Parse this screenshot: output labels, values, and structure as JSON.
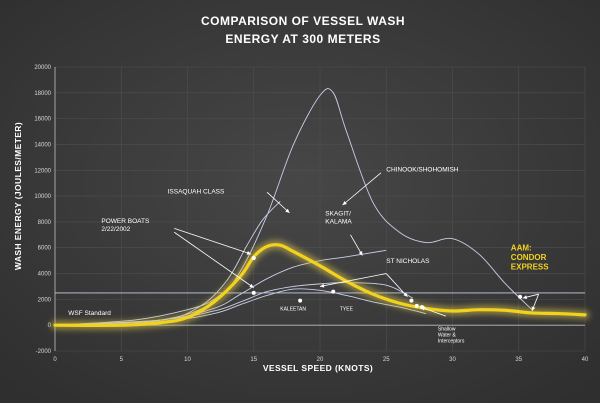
{
  "chart_data": {
    "type": "line",
    "title": [
      "COMPARISON OF VESSEL WASH",
      "ENERGY AT 300 METERS"
    ],
    "xlabel": "VESSEL SPEED (KNOTS)",
    "ylabel": "WASH ENERGY  (JOULES/METER)",
    "xlim": [
      0,
      40
    ],
    "ylim": [
      -2000,
      20000
    ],
    "x_ticks": [
      "0",
      "5",
      "10",
      "15",
      "20",
      "25",
      "30",
      "35",
      "40"
    ],
    "y_ticks": [
      "-2000",
      "0",
      "2000",
      "4000",
      "6000",
      "8000",
      "10000",
      "12000",
      "14000",
      "16000",
      "18000",
      "20000"
    ],
    "grid": true,
    "colors": {
      "background": "#3a3a3a",
      "series": "#c9cde6",
      "highlight": "#f2d21c",
      "glow": "#d9c24a",
      "text": "#ffffff"
    },
    "series": [
      {
        "id": "chinook",
        "points": [
          [
            0,
            0
          ],
          [
            8,
            400
          ],
          [
            12,
            1800
          ],
          [
            14,
            4200
          ],
          [
            16,
            8500
          ],
          [
            18,
            14000
          ],
          [
            20,
            17800
          ],
          [
            21,
            18000
          ],
          [
            22,
            15000
          ],
          [
            24,
            9500
          ],
          [
            26,
            7200
          ],
          [
            28,
            6400
          ],
          [
            30,
            6700
          ],
          [
            32,
            5500
          ],
          [
            34,
            3200
          ],
          [
            36,
            1200
          ]
        ]
      },
      {
        "id": "issaquah",
        "points": [
          [
            0,
            0
          ],
          [
            8,
            400
          ],
          [
            11,
            1500
          ],
          [
            13,
            3500
          ],
          [
            14.5,
            6200
          ],
          [
            15.7,
            8200
          ],
          [
            17,
            9600
          ]
        ]
      },
      {
        "id": "skagit",
        "points": [
          [
            0,
            0
          ],
          [
            8,
            400
          ],
          [
            12,
            1300
          ],
          [
            14,
            2400
          ],
          [
            16,
            3600
          ],
          [
            18,
            4500
          ],
          [
            20,
            5000
          ],
          [
            22,
            5300
          ],
          [
            25,
            5800
          ]
        ]
      },
      {
        "id": "st-nicholas",
        "points": [
          [
            0,
            0
          ],
          [
            8,
            400
          ],
          [
            12,
            1100
          ],
          [
            14,
            1800
          ],
          [
            16,
            2600
          ],
          [
            18,
            3000
          ],
          [
            20,
            3200
          ],
          [
            22,
            3300
          ],
          [
            25,
            3100
          ],
          [
            27,
            2100
          ]
        ]
      },
      {
        "id": "power-boats",
        "points": [
          [
            0,
            0
          ],
          [
            6,
            400
          ],
          [
            10,
            1200
          ],
          [
            12,
            2000
          ],
          [
            14,
            3800
          ],
          [
            15,
            5200
          ]
        ]
      },
      {
        "id": "tyee",
        "points": [
          [
            0,
            0
          ],
          [
            8,
            300
          ],
          [
            12,
            900
          ],
          [
            14,
            1600
          ],
          [
            16,
            2300
          ],
          [
            18,
            2800
          ],
          [
            20,
            2700
          ],
          [
            22,
            2300
          ],
          [
            24,
            1800
          ],
          [
            26,
            1400
          ],
          [
            28,
            900
          ]
        ]
      },
      {
        "id": "wsf-standard",
        "points": [
          [
            0,
            2500
          ],
          [
            40,
            2500
          ]
        ]
      },
      {
        "id": "aam-condor-express",
        "highlight": true,
        "points": [
          [
            0,
            0
          ],
          [
            5,
            0
          ],
          [
            8,
            200
          ],
          [
            10,
            600
          ],
          [
            12,
            1800
          ],
          [
            14,
            3800
          ],
          [
            15,
            5300
          ],
          [
            16,
            6100
          ],
          [
            17,
            6200
          ],
          [
            18,
            5700
          ],
          [
            20,
            4600
          ],
          [
            22,
            3400
          ],
          [
            24,
            2400
          ],
          [
            26,
            1700
          ],
          [
            28,
            1300
          ],
          [
            30,
            1100
          ],
          [
            32,
            1200
          ],
          [
            34,
            1150
          ],
          [
            36,
            950
          ],
          [
            38,
            900
          ],
          [
            40,
            800
          ]
        ]
      }
    ],
    "markers": [
      {
        "id": "power-boats-point",
        "x": 15,
        "y": 5200
      },
      {
        "id": "kaleetan-point",
        "x": 18.5,
        "y": 1900
      },
      {
        "id": "tyee-point",
        "x": 21,
        "y": 2600
      },
      {
        "id": "wsf-standard-point",
        "x": 15,
        "y": 2500
      },
      {
        "id": "shallow-water-point-1",
        "x": 26.9,
        "y": 1900
      },
      {
        "id": "shallow-water-point-2",
        "x": 27.3,
        "y": 1500
      },
      {
        "id": "shallow-water-point-3",
        "x": 27.7,
        "y": 1400
      },
      {
        "id": "condor-point",
        "x": 35.1,
        "y": 2200
      }
    ],
    "annotations": [
      {
        "id": "chinook",
        "text": "CHINOOK/SHOHOMISH",
        "x": 25,
        "y": 11900
      },
      {
        "id": "issaquah",
        "text": "ISSAQUAH CLASS",
        "x": 8.5,
        "y": 10200
      },
      {
        "id": "power-boats",
        "lines": [
          "POWER BOATS",
          "2/22/2002"
        ],
        "x": 3.5,
        "y": 7900
      },
      {
        "id": "skagit",
        "lines": [
          "SKAGIT/",
          "KALAMA"
        ],
        "x": 20.4,
        "y": 8500
      },
      {
        "id": "st-nicholas",
        "text": "ST NICHOLAS",
        "x": 25,
        "y": 4800
      },
      {
        "id": "wsf-standard",
        "text": "WSF Standard",
        "x": 1,
        "y": 800
      },
      {
        "id": "kaleetan",
        "text": "KALEETAN",
        "x": 17,
        "y": 1150
      },
      {
        "id": "tyee",
        "text": "TYEE",
        "x": 21.5,
        "y": 1150
      },
      {
        "id": "shallow-water",
        "lines": [
          "Shallow",
          "Water &",
          "Interceptors"
        ],
        "x": 28.9,
        "y": -400
      },
      {
        "id": "condor",
        "highlight": true,
        "lines": [
          "AAM:",
          "CONDOR",
          "EXPRESS"
        ],
        "x": 34.4,
        "y": 5800
      }
    ],
    "arrows": [
      {
        "id": "chinook-arrow",
        "from": [
          24.6,
          11800
        ],
        "to": [
          21.7,
          9300
        ]
      },
      {
        "id": "issaquah-arrow",
        "from": [
          16,
          10300
        ],
        "to": [
          17.7,
          8700
        ]
      },
      {
        "id": "power-boats-arrow",
        "from": [
          9,
          7500
        ],
        "to": [
          14.8,
          5500
        ]
      },
      {
        "id": "power-boats-arrow-2",
        "from": [
          9,
          7200
        ],
        "to": [
          15,
          2900
        ]
      },
      {
        "id": "skagit-arrow",
        "from": [
          22.3,
          7000
        ],
        "to": [
          23.2,
          5400
        ]
      },
      {
        "id": "st-nicholas-arrow",
        "from": [
          25,
          4000
        ],
        "to": [
          20,
          3000
        ]
      },
      {
        "id": "st-nicholas-arrow-2",
        "from": [
          25,
          4000
        ],
        "to": [
          26.6,
          2200
        ]
      },
      {
        "id": "shallow-water-arrow",
        "from": [
          29.5,
          700
        ],
        "to": [
          27.6,
          1400
        ]
      },
      {
        "id": "condor-arrow",
        "from": [
          36.5,
          2400
        ],
        "to": [
          36,
          1100
        ]
      },
      {
        "id": "condor-arrow-2",
        "from": [
          36.5,
          2400
        ],
        "to": [
          35.3,
          2100
        ]
      }
    ]
  }
}
